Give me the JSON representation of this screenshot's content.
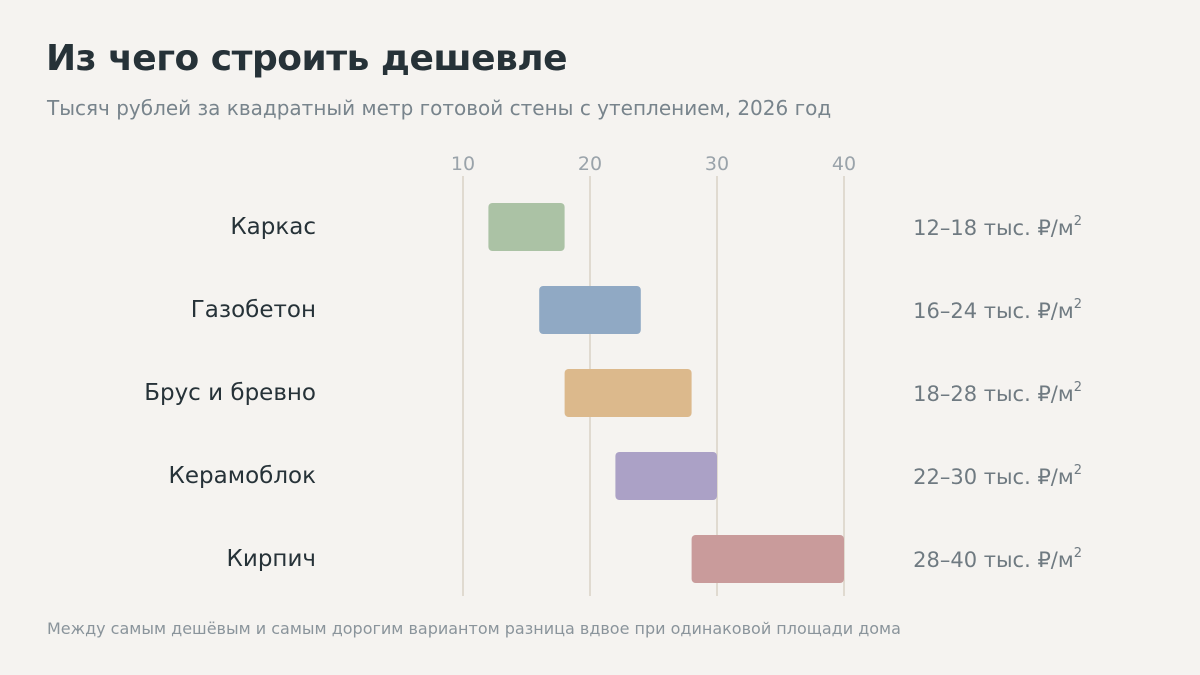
{
  "header": {
    "title": "Из чего строить дешевле",
    "subtitle": "Тысяч рублей за квадратный метр готовой стены с утеплением, 2026 год"
  },
  "footnote": "Между самым дешёвым и самым дорогим вариантом разница вдвое при одинаковой площади дома",
  "chart_data": {
    "type": "bar",
    "orientation": "horizontal-range",
    "title": "Из чего строить дешевле",
    "subtitle": "Тысяч рублей за квадратный метр готовой стены с утеплением, 2026 год",
    "xlim": [
      10,
      40
    ],
    "x_ticks": [
      10,
      20,
      30,
      40
    ],
    "grid": true,
    "categories": [
      "Каркас",
      "Газобетон",
      "Брус и бревно",
      "Керамоблок",
      "Кирпич"
    ],
    "ranges": [
      {
        "category": "Каркас",
        "min": 12,
        "max": 18,
        "label": "12–18 тыс. ₽/м",
        "label_sup": "2",
        "color": "#abc2a5"
      },
      {
        "category": "Газобетон",
        "min": 16,
        "max": 24,
        "label": "16–24 тыс. ₽/м",
        "label_sup": "2",
        "color": "#90a9c4"
      },
      {
        "category": "Брус и бревно",
        "min": 18,
        "max": 28,
        "label": "18–28 тыс. ₽/м",
        "label_sup": "2",
        "color": "#dcb98c"
      },
      {
        "category": "Керамоблок",
        "min": 22,
        "max": 30,
        "label": "22–30 тыс. ₽/м",
        "label_sup": "2",
        "color": "#aba1c6"
      },
      {
        "category": "Кирпич",
        "min": 28,
        "max": 40,
        "label": "28–40 тыс. ₽/м",
        "label_sup": "2",
        "color": "#c99b9b"
      }
    ],
    "colors": {
      "gridline": "#e0dad0",
      "tick_text": "#9aa3aa",
      "category_text": "#263238",
      "value_text": "#6f7a81"
    }
  }
}
